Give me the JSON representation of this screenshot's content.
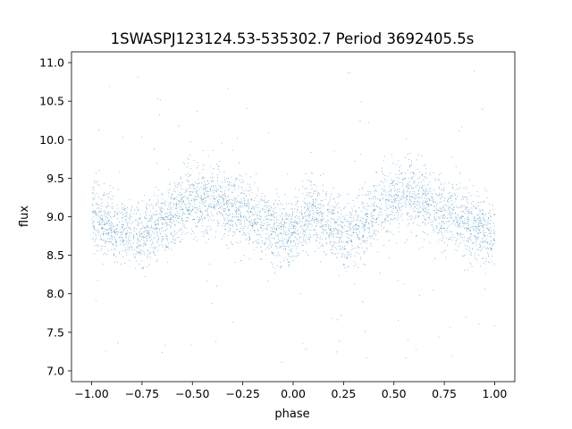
{
  "chart_data": {
    "type": "scatter",
    "title": "1SWASPJ123124.53-535302.7 Period 3692405.5s",
    "xlabel": "phase",
    "ylabel": "flux",
    "xlim": [
      -1.1,
      1.1
    ],
    "ylim": [
      6.86,
      11.14
    ],
    "x_ticks": [
      -1.0,
      -0.75,
      -0.5,
      -0.25,
      0.0,
      0.25,
      0.5,
      0.75,
      1.0
    ],
    "x_tick_labels": [
      "−1.00",
      "−0.75",
      "−0.50",
      "−0.25",
      "0.00",
      "0.25",
      "0.50",
      "0.75",
      "1.00"
    ],
    "y_ticks": [
      7.0,
      7.5,
      8.0,
      8.5,
      9.0,
      9.5,
      10.0,
      10.5,
      11.0
    ],
    "y_tick_labels": [
      "7.0",
      "7.5",
      "8.0",
      "8.5",
      "9.0",
      "9.5",
      "10.0",
      "10.5",
      "11.0"
    ],
    "grid": false,
    "legend": "none",
    "marker_color": "#1f77b4",
    "series": [
      {
        "points_description": "dense scatter of phase-folded light curve, phase -1 to 1, flux mostly 8.3 to 9.6",
        "profile": {
          "phase": [
            -1.0,
            -0.9,
            -0.75,
            -0.6,
            -0.5,
            -0.4,
            -0.25,
            -0.1,
            0.0,
            0.1,
            0.25,
            0.4,
            0.5,
            0.6,
            0.75,
            0.9,
            1.0
          ],
          "median_flux": [
            9.05,
            8.85,
            8.75,
            9.05,
            9.2,
            9.25,
            9.05,
            8.85,
            8.75,
            9.05,
            8.75,
            9.05,
            9.2,
            9.25,
            9.05,
            8.85,
            8.75
          ],
          "spread": [
            0.3,
            0.28,
            0.27,
            0.3,
            0.32,
            0.3,
            0.3,
            0.28,
            0.27,
            0.3,
            0.28,
            0.3,
            0.32,
            0.3,
            0.3,
            0.28,
            0.27
          ]
        },
        "n_points": 9000,
        "outlier_range": [
          7.1,
          10.9
        ]
      }
    ]
  }
}
